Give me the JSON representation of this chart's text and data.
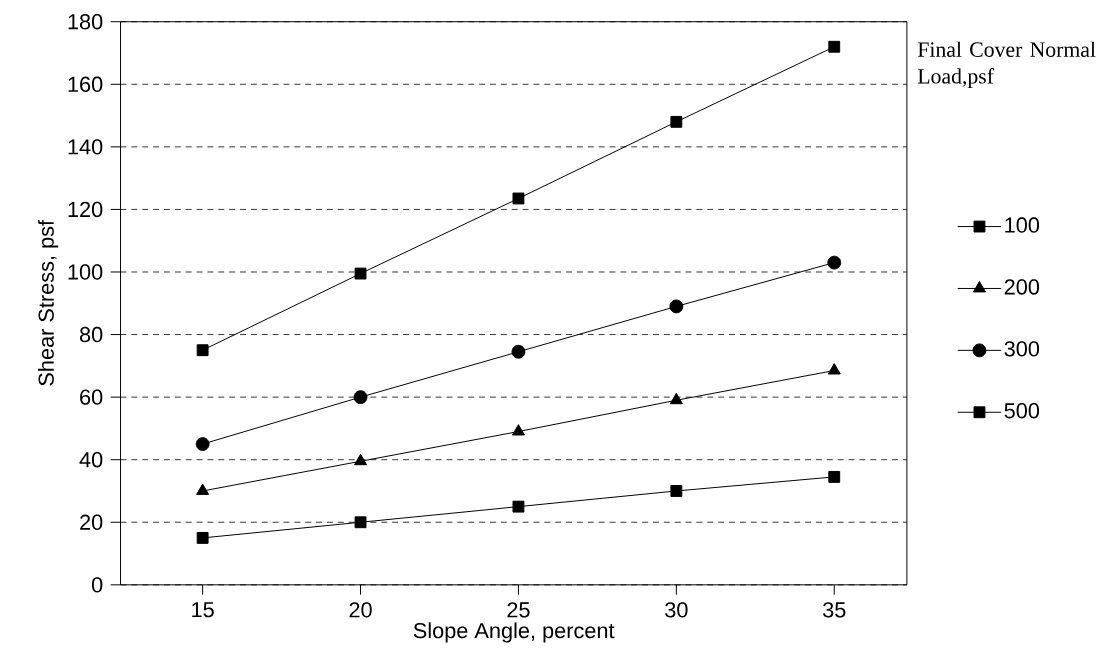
{
  "chart_data": {
    "type": "line",
    "xlabel": "Slope Angle, percent",
    "ylabel": "Shear Stress, psf",
    "legend_title": "Final Cover Normal Load,psf",
    "x": [
      15,
      20,
      25,
      30,
      35
    ],
    "series": [
      {
        "name": "100",
        "color": "#000000",
        "marker": "square",
        "values": [
          15,
          20,
          25,
          30,
          34.5
        ]
      },
      {
        "name": "200",
        "color": "#000000",
        "marker": "triangle",
        "values": [
          30,
          39.5,
          49,
          59,
          68.5
        ]
      },
      {
        "name": "300",
        "color": "#000000",
        "marker": "circle",
        "values": [
          45,
          60,
          74.5,
          89,
          103
        ]
      },
      {
        "name": "500",
        "color": "#000000",
        "marker": "square",
        "values": [
          75,
          99.5,
          123.5,
          148,
          172
        ]
      }
    ],
    "xlim": [
      12.4,
      37.3
    ],
    "ylim": [
      0,
      180
    ],
    "xticks": [
      15,
      20,
      25,
      30,
      35
    ],
    "yticks": [
      0,
      20,
      40,
      60,
      80,
      100,
      120,
      140,
      160,
      180
    ],
    "grid": "y",
    "legend": "right",
    "line_style": "solid"
  }
}
